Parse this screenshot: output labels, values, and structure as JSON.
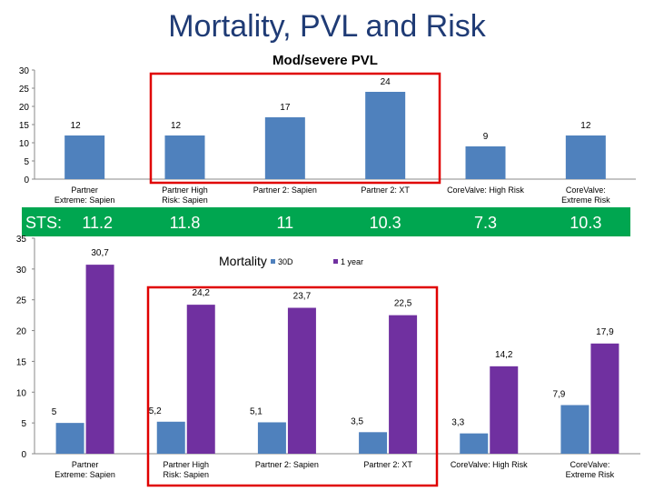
{
  "page_title": "Mortality, PVL and Risk",
  "colors": {
    "blue": "#4f81bd",
    "purple": "#7030a0",
    "red_box": "#e00000",
    "sts_band": "#00a650",
    "title": "#1f3b75"
  },
  "chart_data": [
    {
      "type": "bar",
      "title": "Mod/severe PVL",
      "categories": [
        "Partner Extreme: Sapien",
        "Partner High Risk: Sapien",
        "Partner 2: Sapien",
        "Partner 2: XT",
        "CoreValve: High Risk",
        "CoreValve: Extreme Risk"
      ],
      "values": [
        12,
        12,
        17,
        24,
        9,
        12
      ],
      "value_labels": [
        "12",
        "12",
        "17",
        "24",
        "9",
        "12"
      ],
      "ylim": [
        0,
        30
      ],
      "yticks": [
        "0",
        "5",
        "10",
        "15",
        "20",
        "25",
        "30"
      ],
      "grid": false,
      "highlight": "Partner High Risk: Sapien to Partner 2: XT"
    },
    {
      "type": "bar",
      "title": "Mortality",
      "categories": [
        "Partner Extreme: Sapien",
        "Partner High Risk: Sapien",
        "Partner 2: Sapien",
        "Partner 2: XT",
        "CoreValve: High Risk",
        "CoreValve: Extreme Risk"
      ],
      "series": [
        {
          "name": "30D",
          "values": [
            5,
            5.2,
            5.1,
            3.5,
            3.3,
            7.9
          ],
          "labels": [
            "5",
            "5,2",
            "5,1",
            "3,5",
            "3,3",
            "7,9"
          ]
        },
        {
          "name": "1 year",
          "values": [
            30.7,
            24.2,
            23.7,
            22.5,
            14.2,
            17.9
          ],
          "labels": [
            "30,7",
            "24,2",
            "23,7",
            "22,5",
            "14,2",
            "17,9"
          ]
        }
      ],
      "ylim": [
        0,
        35
      ],
      "yticks": [
        "0",
        "5",
        "10",
        "15",
        "20",
        "25",
        "30",
        "35"
      ],
      "grid": false,
      "legend_position": "top-center",
      "highlight": "Partner High Risk: Sapien to Partner 2: XT"
    }
  ],
  "sts": {
    "label": "STS:",
    "values": [
      "11.2",
      "11.8",
      "11",
      "10.3",
      "7.3",
      "10.3"
    ]
  }
}
